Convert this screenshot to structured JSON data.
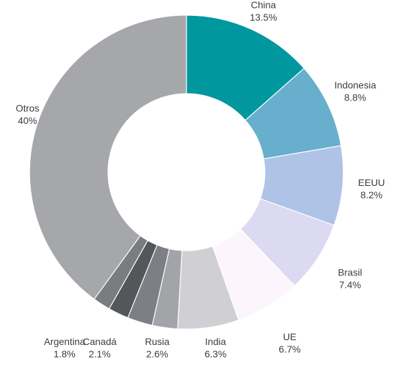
{
  "chart_data": {
    "type": "donut",
    "title": "",
    "slices": [
      {
        "name": "China",
        "value": 13.5,
        "label": "13.5%",
        "color": "#00979f"
      },
      {
        "name": "Indonesia",
        "value": 8.8,
        "label": "8.8%",
        "color": "#67afcc"
      },
      {
        "name": "EEUU",
        "value": 8.2,
        "label": "8.2%",
        "color": "#aec3e6"
      },
      {
        "name": "Brasil",
        "value": 7.4,
        "label": "7.4%",
        "color": "#dcd9f2"
      },
      {
        "name": "UE",
        "value": 6.7,
        "label": "6.7%",
        "color": "#fdf5fc"
      },
      {
        "name": "India",
        "value": 6.3,
        "label": "6.3%",
        "color": "#d0d0d4"
      },
      {
        "name": "Rusia",
        "value": 2.6,
        "label": "2.6%",
        "color": "#a3a4a8"
      },
      {
        "name": "",
        "value": 2.6,
        "label": "",
        "color": "#7c8086"
      },
      {
        "name": "Canadá",
        "value": 2.1,
        "label": "2.1%",
        "color": "#53575a"
      },
      {
        "name": "Argentina",
        "value": 1.8,
        "label": "1.8%",
        "color": "#7a7d80"
      },
      {
        "name": "Otros",
        "value": 40,
        "label": "40%",
        "color": "#a6a7aa"
      }
    ]
  }
}
